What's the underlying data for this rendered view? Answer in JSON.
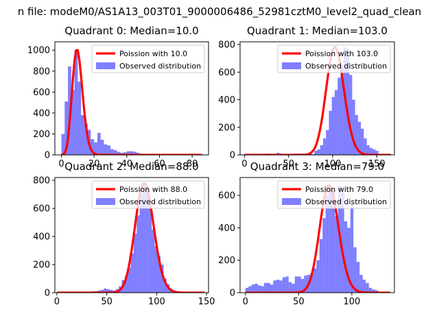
{
  "suptitle": "n file: modeM0/AS1A13_003T01_9000006486_52981cztM0_level2_quad_clean",
  "colors": {
    "hist": "#0000ff",
    "hist_opacity": 0.5,
    "curve": "#ff0000"
  },
  "chart_data": [
    {
      "type": "bar",
      "title": "Quadrant 0: Median=10.0",
      "median": 10.0,
      "xlim": [
        -4,
        90
      ],
      "ylim": [
        0,
        1080
      ],
      "xticks": [
        0,
        20,
        40,
        60,
        80
      ],
      "yticks": [
        0,
        200,
        400,
        600,
        800,
        1000
      ],
      "bin_width": 2,
      "bin_start": 0,
      "hist_values": [
        200,
        510,
        845,
        620,
        1000,
        700,
        380,
        300,
        240,
        150,
        120,
        210,
        145,
        100,
        90,
        55,
        45,
        30,
        20,
        25,
        35,
        35,
        30,
        20,
        10,
        10,
        8,
        5,
        5,
        5,
        5,
        3,
        3,
        3,
        3,
        2,
        2,
        2,
        2,
        1,
        1,
        1,
        1
      ],
      "legend": {
        "curve": "Poission with 10.0",
        "hist": "Observed distribution"
      }
    },
    {
      "type": "bar",
      "title": "Quadrant 1: Median=103.0",
      "median": 103.0,
      "xlim": [
        -5,
        170
      ],
      "ylim": [
        0,
        820
      ],
      "xticks": [
        0,
        50,
        100,
        150
      ],
      "yticks": [
        0,
        200,
        400,
        600,
        800
      ],
      "bin_width": 3.3,
      "bin_start": 0,
      "hist_values": [
        5,
        5,
        5,
        5,
        5,
        5,
        5,
        5,
        10,
        5,
        5,
        15,
        10,
        5,
        5,
        5,
        5,
        10,
        10,
        10,
        5,
        10,
        10,
        5,
        30,
        40,
        70,
        120,
        180,
        320,
        420,
        470,
        560,
        650,
        780,
        770,
        580,
        400,
        290,
        240,
        190,
        120,
        70,
        50,
        40,
        30,
        5,
        5,
        5,
        3
      ],
      "legend": {
        "curve": "Poission with 103.0",
        "hist": "Observed distribution"
      }
    },
    {
      "type": "bar",
      "title": "Quadrant 2: Median=88.0",
      "median": 88.0,
      "xlim": [
        -2,
        152
      ],
      "ylim": [
        0,
        820
      ],
      "xticks": [
        0,
        50,
        100,
        150
      ],
      "yticks": [
        0,
        200,
        400,
        600,
        800
      ],
      "bin_width": 3,
      "bin_start": 5,
      "hist_values": [
        5,
        5,
        5,
        5,
        5,
        5,
        5,
        5,
        5,
        5,
        10,
        10,
        15,
        20,
        30,
        25,
        20,
        15,
        25,
        45,
        90,
        120,
        180,
        280,
        420,
        550,
        700,
        780,
        760,
        620,
        450,
        330,
        260,
        200,
        100,
        60,
        30,
        15,
        10,
        5,
        5,
        5,
        5,
        3
      ],
      "legend": {
        "curve": "Poission with 88.0",
        "hist": "Observed distribution"
      }
    },
    {
      "type": "bar",
      "title": "Quadrant 3: Median=79.0",
      "median": 79.0,
      "xlim": [
        -5,
        140
      ],
      "ylim": [
        0,
        710
      ],
      "xticks": [
        0,
        50,
        100
      ],
      "yticks": [
        0,
        200,
        400,
        600
      ],
      "bin_width": 2.9,
      "bin_start": 0,
      "hist_values": [
        30,
        40,
        50,
        55,
        45,
        40,
        60,
        60,
        50,
        75,
        80,
        75,
        95,
        100,
        65,
        55,
        100,
        100,
        85,
        105,
        110,
        120,
        150,
        200,
        330,
        460,
        600,
        650,
        630,
        470,
        660,
        620,
        440,
        400,
        550,
        280,
        190,
        110,
        80,
        60,
        30,
        20,
        15,
        5,
        5,
        5
      ],
      "legend": {
        "curve": "Poission with 79.0",
        "hist": "Observed distribution"
      }
    }
  ]
}
